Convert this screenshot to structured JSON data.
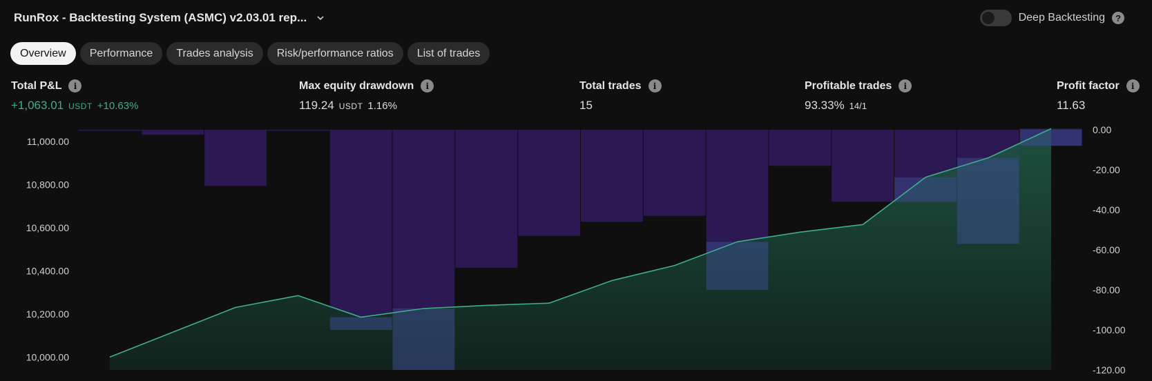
{
  "header": {
    "title": "RunRox - Backtesting System (ASMC) v2.03.01 rep...",
    "deep_label": "Deep Backtesting"
  },
  "tabs": [
    {
      "label": "Overview",
      "active": true
    },
    {
      "label": "Performance",
      "active": false
    },
    {
      "label": "Trades analysis",
      "active": false
    },
    {
      "label": "Risk/performance ratios",
      "active": false
    },
    {
      "label": "List of trades",
      "active": false
    }
  ],
  "stats": {
    "total_pnl": {
      "label": "Total P&L",
      "value": "+1,063.01",
      "unit": "USDT",
      "pct": "+10.63%"
    },
    "max_dd": {
      "label": "Max equity drawdown",
      "value": "119.24",
      "unit": "USDT",
      "pct": "1.16%"
    },
    "total_trades": {
      "label": "Total trades",
      "value": "15"
    },
    "profitable": {
      "label": "Profitable trades",
      "value": "93.33%",
      "ratio": "14/1"
    },
    "profit_factor": {
      "label": "Profit factor",
      "value": "11.63"
    }
  },
  "colors": {
    "equity_line": "#3fae8c",
    "drawdown_bar": "#2c1852",
    "accent_green": "#3fae8c"
  },
  "chart_data": {
    "type": "bar+area",
    "left_axis": {
      "ticks": [
        "11,000.00",
        "10,800.00",
        "10,600.00",
        "10,400.00",
        "10,200.00",
        "10,000.00"
      ],
      "range": [
        9940,
        11055
      ]
    },
    "right_axis": {
      "ticks": [
        "0.00",
        "-20.00",
        "-40.00",
        "-60.00",
        "-80.00",
        "-100.00",
        "-120.00"
      ],
      "range": [
        -120,
        0
      ]
    },
    "equity": [
      10000,
      10115,
      10230,
      10285,
      10185,
      10225,
      10240,
      10250,
      10355,
      10425,
      10535,
      10580,
      10615,
      10835,
      10925,
      11060
    ],
    "drawdown": [
      -0.5,
      -2.5,
      -28,
      -0.5,
      -100,
      -120,
      -69,
      -53,
      -46,
      -43,
      -80,
      -18,
      -36,
      -36,
      -57,
      -8
    ]
  }
}
